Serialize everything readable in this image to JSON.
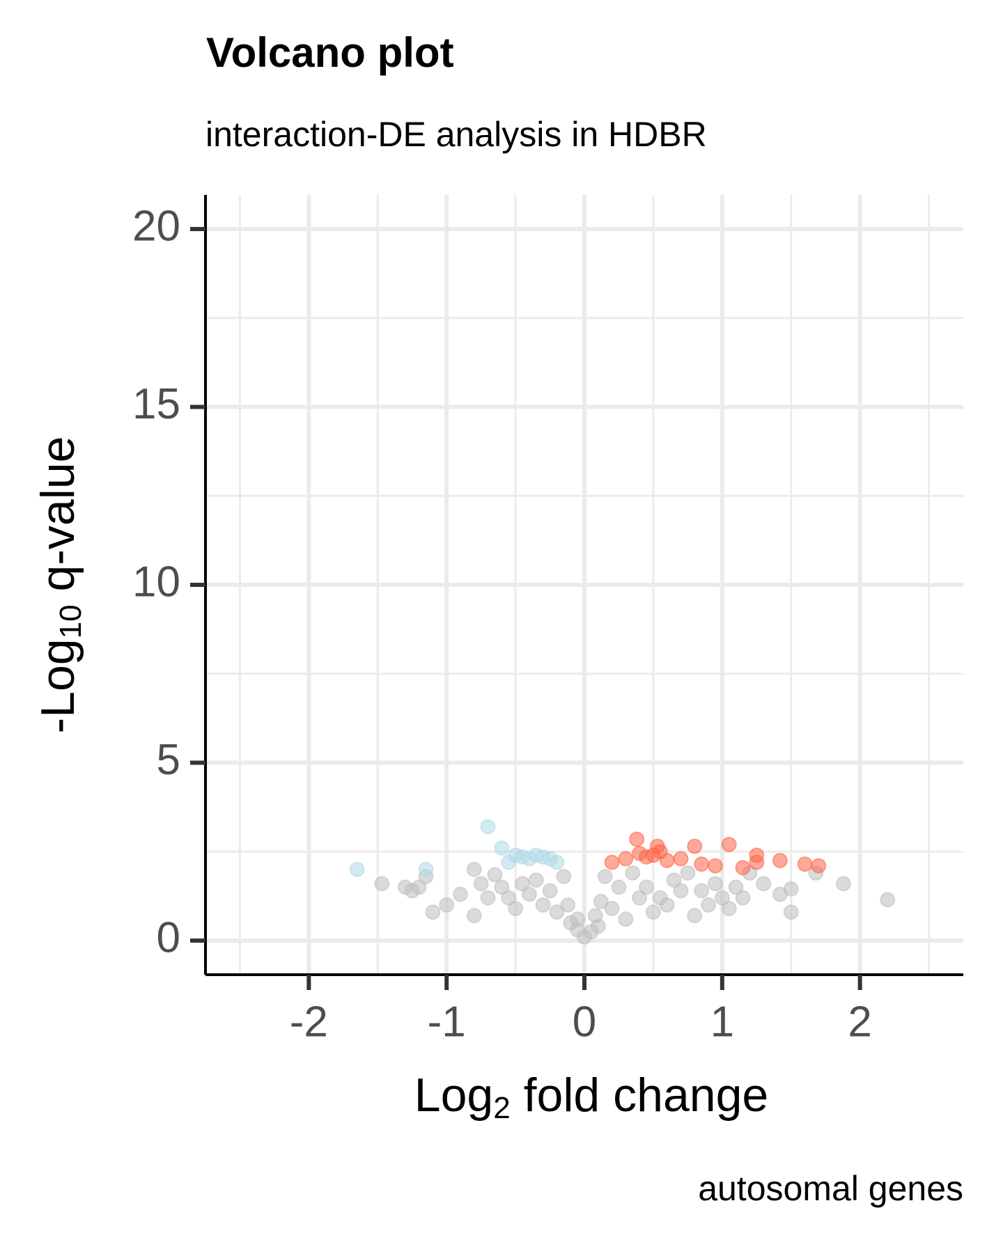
{
  "chart_data": {
    "type": "scatter",
    "title": "Volcano plot",
    "subtitle": "interaction-DE analysis in HDBR",
    "caption": "autosomal genes",
    "x_label": [
      "Log",
      "2",
      " fold change"
    ],
    "y_label": [
      "-Log",
      "10",
      " q-value"
    ],
    "xlim": [
      -2.75,
      2.75
    ],
    "ylim": [
      -0.96,
      20.96
    ],
    "xticks": [
      -2,
      -1,
      0,
      1,
      2
    ],
    "yticks": [
      0,
      5,
      10,
      15,
      20
    ],
    "xminor": [
      -2.5,
      -1.5,
      -0.5,
      0.5,
      1.5,
      2.5
    ],
    "yminor": [
      2.5,
      7.5,
      12.5,
      17.5
    ],
    "grid": true,
    "opacity": 0.55,
    "series": [
      {
        "color": "#bebebe",
        "x": [
          2.2,
          1.88,
          1.68,
          1.5,
          1.5,
          1.42,
          1.3,
          1.2,
          1.1,
          1.0,
          0.9,
          0.8,
          0.7,
          0.6,
          0.5,
          0.4,
          0.3,
          0.2,
          0.1,
          0.05,
          0,
          -0.05,
          -0.1,
          -0.2,
          -0.3,
          -0.4,
          -0.5,
          -0.6,
          -0.7,
          -0.8,
          -0.8,
          -0.9,
          -1.0,
          -1.1,
          -1.15,
          -1.2,
          -1.25,
          -1.47,
          -1.3,
          -0.15,
          0.15,
          0.25,
          0.35,
          0.65,
          0.75,
          0.95,
          1.05,
          -0.35,
          -0.45,
          -0.65,
          -0.25,
          0.45,
          0.55,
          0.85,
          -0.55,
          -0.75,
          1.15,
          -0.05,
          0.08,
          0.12,
          -0.12
        ],
        "values": [
          1.15,
          1.6,
          1.9,
          0.8,
          1.45,
          1.3,
          1.6,
          1.9,
          1.5,
          1.2,
          1.0,
          0.7,
          1.4,
          1.0,
          0.8,
          1.2,
          0.6,
          0.9,
          0.4,
          0.25,
          0.1,
          0.3,
          0.5,
          0.8,
          1.0,
          1.3,
          0.9,
          1.5,
          1.2,
          0.7,
          2.0,
          1.3,
          1.0,
          0.8,
          1.8,
          1.5,
          1.4,
          1.6,
          1.5,
          1.8,
          1.8,
          1.5,
          1.9,
          1.7,
          1.9,
          1.6,
          0.9,
          1.7,
          1.6,
          1.85,
          1.4,
          1.5,
          1.2,
          1.4,
          1.2,
          1.6,
          1.2,
          0.6,
          0.7,
          1.1,
          1.0
        ]
      },
      {
        "color": "#add8e6",
        "x": [
          -1.65,
          -1.15,
          -0.7,
          -0.6,
          -0.5,
          -0.45,
          -0.35,
          -0.3,
          -0.25,
          -0.2,
          -0.55,
          -0.4
        ],
        "values": [
          2.0,
          2.0,
          3.2,
          2.6,
          2.4,
          2.35,
          2.4,
          2.35,
          2.3,
          2.2,
          2.2,
          2.3
        ]
      },
      {
        "color": "#ff6347",
        "x": [
          0.38,
          0.53,
          0.8,
          1.05,
          1.25,
          1.42,
          1.6,
          1.7,
          0.2,
          0.3,
          0.4,
          0.45,
          0.5,
          0.6,
          0.7,
          0.85,
          0.95,
          1.15,
          1.25,
          0.55
        ],
        "values": [
          2.85,
          2.65,
          2.65,
          2.7,
          2.4,
          2.25,
          2.15,
          2.1,
          2.2,
          2.3,
          2.45,
          2.35,
          2.4,
          2.25,
          2.3,
          2.15,
          2.1,
          2.05,
          2.2,
          2.5
        ]
      }
    ]
  }
}
